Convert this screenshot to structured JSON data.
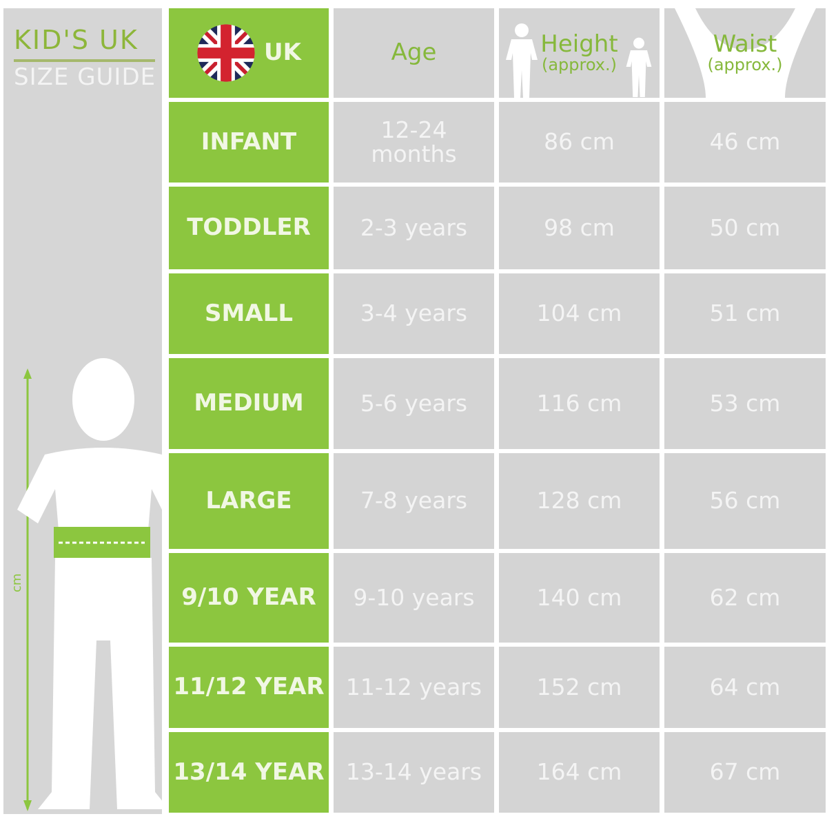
{
  "guide": {
    "title_line1": "KID'S UK",
    "title_line2": "SIZE GUIDE",
    "axis_unit": "cm"
  },
  "header": {
    "uk": "UK",
    "age": "Age",
    "height": "Height",
    "height_sub": "(approx.)",
    "waist": "Waist",
    "waist_sub": "(approx.)",
    "flag_icon": "uk-flag-icon"
  },
  "rows": [
    {
      "size": "INFANT",
      "age": "12-24 months",
      "height": "86 cm",
      "waist": "46 cm"
    },
    {
      "size": "TODDLER",
      "age": "2-3 years",
      "height": "98 cm",
      "waist": "50 cm"
    },
    {
      "size": "SMALL",
      "age": "3-4 years",
      "height": "104 cm",
      "waist": "51 cm"
    },
    {
      "size": "MEDIUM",
      "age": "5-6 years",
      "height": "116 cm",
      "waist": "53 cm"
    },
    {
      "size": "LARGE",
      "age": "7-8 years",
      "height": "128 cm",
      "waist": "56 cm"
    },
    {
      "size": "9/10 YEAR",
      "age": "9-10 years",
      "height": "140 cm",
      "waist": "62 cm"
    },
    {
      "size": "11/12 YEAR",
      "age": "11-12 years",
      "height": "152 cm",
      "waist": "64 cm"
    },
    {
      "size": "13/14 YEAR",
      "age": "13-14 years",
      "height": "164 cm",
      "waist": "67 cm"
    }
  ],
  "colors": {
    "green": "#8cc63f",
    "grey": "#d4d4d4",
    "text": "#f4f4f4"
  }
}
